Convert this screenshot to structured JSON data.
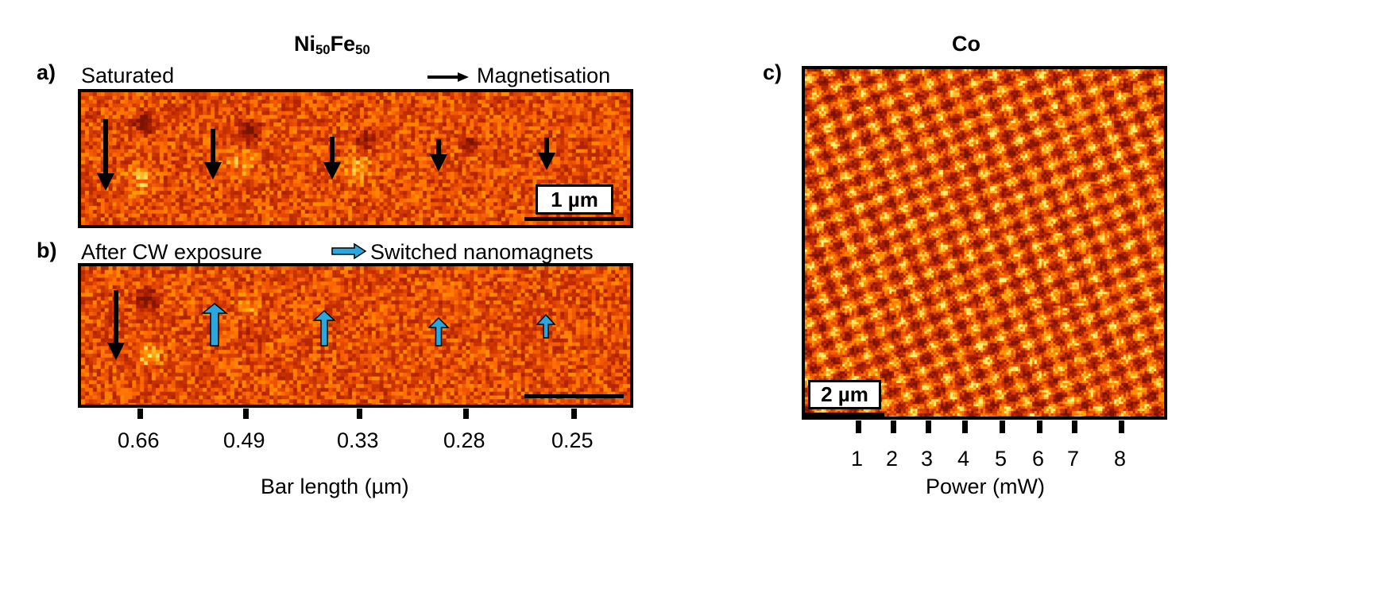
{
  "left_title": {
    "element1": "Ni",
    "sub1": "50",
    "element2": "Fe",
    "sub2": "50"
  },
  "right_title": "Co",
  "panel_a": {
    "label": "a)",
    "state": "Saturated",
    "legend": "Magnetisation",
    "scale_bar": "1 µm"
  },
  "panel_b": {
    "label": "b)",
    "state": "After CW exposure",
    "legend": "Switched nanomagnets"
  },
  "panel_c": {
    "label": "c)",
    "scale_bar": "2 µm"
  },
  "left_axis": {
    "label": "Bar length (µm)",
    "ticks": [
      "0.66",
      "0.49",
      "0.33",
      "0.28",
      "0.25"
    ]
  },
  "right_axis": {
    "label": "Power (mW)",
    "ticks": [
      "1",
      "2",
      "3",
      "4",
      "5",
      "6",
      "7",
      "8"
    ]
  },
  "colors": {
    "switched_arrow": "#29a8e0",
    "magnetisation_arrow": "#000000",
    "image_base": "#e88a1a"
  }
}
